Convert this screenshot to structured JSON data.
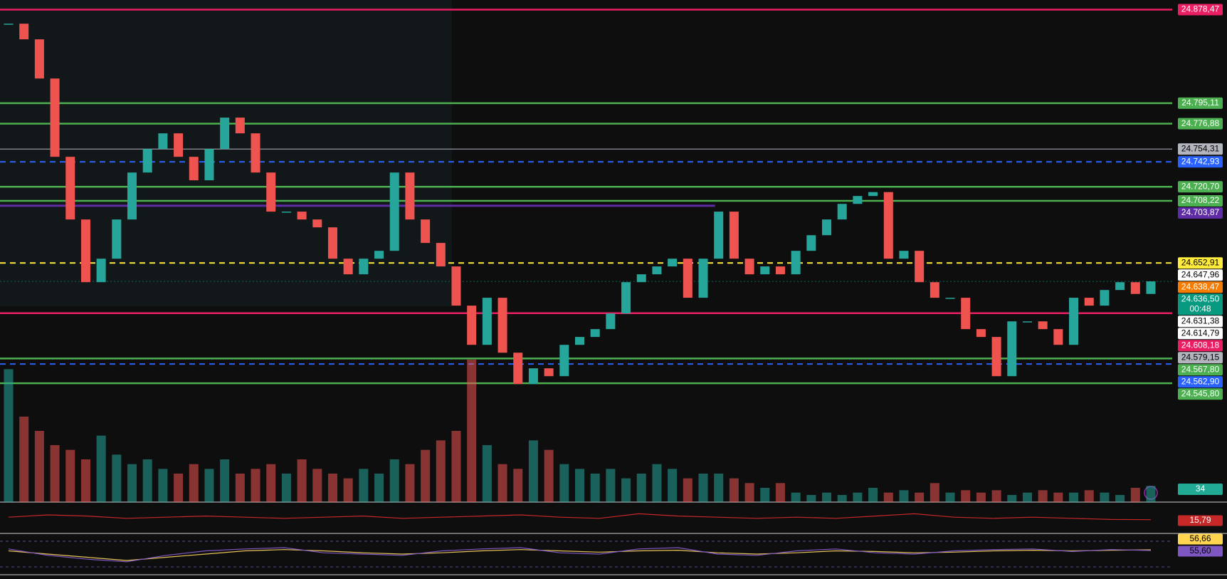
{
  "chart_data": [
    {
      "type": "candlestick",
      "values": [
        24865.9,
        24852.0,
        24817.1,
        24747.4,
        24691.6,
        24635.8,
        24656.7,
        24691.6,
        24733.4,
        24754.4,
        24768.3,
        24747.4,
        24726.5,
        24754.4,
        24782.3,
        24768.3,
        24733.4,
        24698.6,
        24698.6,
        24691.6,
        24684.6,
        24656.7,
        24642.8,
        24656.7,
        24663.7,
        24733.4,
        24691.6,
        24670.7,
        24649.8,
        24614.9,
        24580.0,
        24621.9,
        24573.0,
        24545.1,
        24559.1,
        24552.1,
        24580.0,
        24587.0,
        24594.0,
        24607.9,
        24635.8,
        24642.8,
        24649.8,
        24656.7,
        24621.9,
        24656.7,
        24698.6,
        24656.7,
        24642.8,
        24649.8,
        24642.8,
        24663.7,
        24677.6,
        24691.6,
        24705.5,
        24712.5,
        24716.0,
        24656.7,
        24663.7,
        24635.8,
        24621.9,
        24621.9,
        24594.0,
        24587.0,
        24552.1,
        24600.9,
        24600.9,
        24594.0,
        24580.0,
        24621.9,
        24614.9,
        24628.8,
        24635.8,
        24625.3,
        24636.5
      ],
      "up_color": "#26a69a",
      "down_color": "#ef5350",
      "ylim": [
        24440,
        24887
      ],
      "price_labels": [
        {
          "value": 24878.47,
          "label": "24.878,47",
          "color": "#e91e63",
          "text_color": "#ffffff",
          "line": "solid"
        },
        {
          "value": 24795.11,
          "label": "24.795,11",
          "color": "#4caf50",
          "text_color": "#ffffff",
          "line": "solid"
        },
        {
          "value": 24776.88,
          "label": "24.776,88",
          "color": "#4caf50",
          "text_color": "#ffffff",
          "line": "solid"
        },
        {
          "value": 24754.31,
          "label": "24.754,31",
          "color": "#b2b5be",
          "text_color": "#000000",
          "line": "thin"
        },
        {
          "value": 24742.93,
          "label": "24.742,93",
          "color": "#2962ff",
          "text_color": "#ffffff",
          "line": "dashed"
        },
        {
          "value": 24720.7,
          "label": "24.720,70",
          "color": "#4caf50",
          "text_color": "#ffffff",
          "line": "solid"
        },
        {
          "value": 24708.22,
          "label": "24.708,22",
          "color": "#4caf50",
          "text_color": "#ffffff",
          "line": "solid"
        },
        {
          "value": 24703.87,
          "label": "24.703,87",
          "color": "#5e2ca5",
          "text_color": "#ffffff",
          "line": "partial"
        },
        {
          "value": 24652.91,
          "label": "24.652,91",
          "color": "#ffeb3b",
          "text_color": "#000000",
          "line": "dashed"
        },
        {
          "value": 24647.96,
          "label": "24.647,96",
          "color": "#ffffff",
          "text_color": "#000000",
          "line": "none"
        },
        {
          "value": 24638.47,
          "label": "24.638,47",
          "color": "#f57c00",
          "text_color": "#ffffff",
          "line": "none"
        },
        {
          "value": 24636.5,
          "label": "24.636,50",
          "countdown": "00:48",
          "color": "#089981",
          "text_color": "#ffffff",
          "line": "dotted"
        },
        {
          "value": 24631.38,
          "label": "24.631,38",
          "color": "#ffffff",
          "text_color": "#000000",
          "line": "none"
        },
        {
          "value": 24614.79,
          "label": "24.614,79",
          "color": "#ffffff",
          "text_color": "#000000",
          "line": "none"
        },
        {
          "value": 24608.18,
          "label": "24.608,18",
          "color": "#e91e63",
          "text_color": "#ffffff",
          "line": "solid"
        },
        {
          "value": 24579.15,
          "label": "24.579,15",
          "color": "#b2b5be",
          "text_color": "#000000",
          "line": "none"
        },
        {
          "value": 24567.8,
          "label": "24.567,80",
          "color": "#4caf50",
          "text_color": "#ffffff",
          "line": "solid"
        },
        {
          "value": 24562.9,
          "label": "24.562,90",
          "color": "#2962ff",
          "text_color": "#ffffff",
          "line": "dashed"
        },
        {
          "value": 24545.8,
          "label": "24.545,80",
          "color": "#4caf50",
          "text_color": "#ffffff",
          "line": "solid"
        }
      ]
    },
    {
      "type": "bar",
      "values": [
        280,
        180,
        150,
        120,
        110,
        90,
        140,
        100,
        80,
        90,
        70,
        60,
        80,
        70,
        90,
        60,
        70,
        80,
        60,
        90,
        70,
        60,
        50,
        70,
        60,
        90,
        80,
        110,
        130,
        150,
        300,
        120,
        80,
        70,
        130,
        110,
        80,
        70,
        60,
        70,
        50,
        60,
        80,
        70,
        50,
        60,
        60,
        50,
        40,
        30,
        40,
        20,
        15,
        20,
        15,
        20,
        30,
        20,
        25,
        20,
        40,
        20,
        25,
        20,
        25,
        15,
        20,
        25,
        20,
        20,
        25,
        20,
        15,
        30,
        34
      ],
      "ylim": [
        0,
        300
      ],
      "label_color": "#22ab94"
    },
    {
      "type": "line",
      "values": [
        18,
        20,
        19,
        17,
        18,
        19,
        18,
        17,
        18,
        19,
        17,
        18,
        19,
        20,
        18,
        17,
        21,
        19,
        18,
        17,
        18,
        17,
        19,
        21,
        18,
        17,
        18,
        17,
        16,
        15.79
      ],
      "color": "#c62828",
      "ylim": [
        5,
        30
      ],
      "last_value_label": "15,79"
    },
    {
      "type": "line",
      "series": [
        {
          "color": "#e6c25a",
          "values": [
            55,
            50,
            45,
            40,
            45,
            50,
            55,
            57,
            55,
            52,
            50,
            52,
            55,
            57,
            55,
            53,
            55,
            56,
            52,
            50,
            52,
            55,
            54,
            52,
            53,
            55,
            56,
            55,
            56,
            56.66
          ],
          "last_value_label": "56,66",
          "label_color": "#ffd54f"
        },
        {
          "color": "#7e57c2",
          "values": [
            58,
            48,
            42,
            38,
            48,
            55,
            58,
            60,
            52,
            50,
            48,
            55,
            58,
            60,
            52,
            50,
            58,
            60,
            50,
            48,
            55,
            58,
            52,
            50,
            55,
            57,
            58,
            54,
            57,
            55.6
          ],
          "last_value_label": "55,60",
          "label_color": "#7e57c2"
        }
      ],
      "ylim": [
        20,
        80
      ],
      "bands": [
        70,
        30
      ]
    }
  ]
}
